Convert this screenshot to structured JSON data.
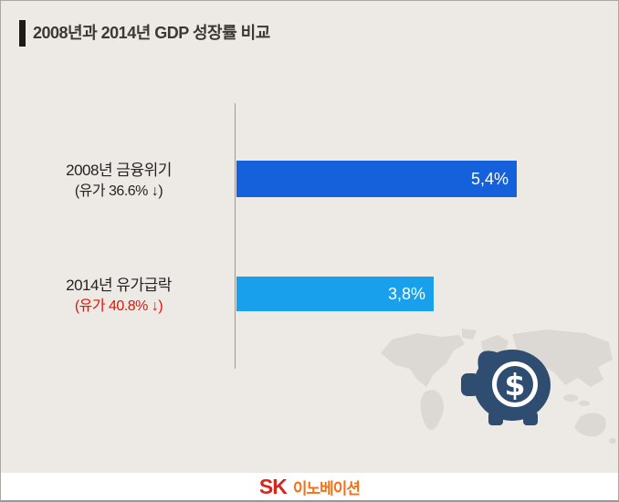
{
  "title": {
    "text": "2008년과 2014년 GDP 성장률 비교"
  },
  "chart_data": {
    "type": "bar",
    "orientation": "horizontal",
    "title": "2008년과 2014년 GDP 성장률 비교",
    "categories": [
      "2008년 금융위기 (유가 36.6% ↓)",
      "2014년 유가급락 (유가 40.8% ↓)"
    ],
    "values": [
      5.4,
      3.8
    ],
    "value_labels": [
      "5,4%",
      "3,8%"
    ],
    "unit": "%",
    "xlim": [
      0,
      5.4
    ],
    "bar_colors": [
      "#1561db",
      "#18a0ec"
    ],
    "grid": false,
    "legend": false,
    "axis_line_color": "#9b968f"
  },
  "bars": [
    {
      "label": "2008년 금융위기",
      "sublabel": "(유가 36.6% ↓)",
      "value": 5.4,
      "value_label": "5,4%",
      "color": "#1561db",
      "sublabel_color": "#262321"
    },
    {
      "label": "2014년 유가급락",
      "sublabel": "(유가 40.8% ↓)",
      "value": 3.8,
      "value_label": "3,8%",
      "color": "#18a0ec",
      "sublabel_color": "#e11508"
    }
  ],
  "graphics": {
    "world_map": "world-map-silhouette",
    "piggy_bank": "piggy-bank-with-dollar-coin",
    "dollar_sign": "$",
    "map_color": "#dcd9d4",
    "pig_color": "#2e4d70"
  },
  "footer": {
    "logo_sk": "SK",
    "logo_suffix": "이노베이션",
    "sk_color": "#d6261d",
    "suffix_color": "#f07218"
  },
  "colors": {
    "background": "#edeae5",
    "title_text": "#3c3834",
    "title_accent_bar": "#1d1b19",
    "value_text": "#ffffff",
    "footer_background": "#ffffff"
  }
}
